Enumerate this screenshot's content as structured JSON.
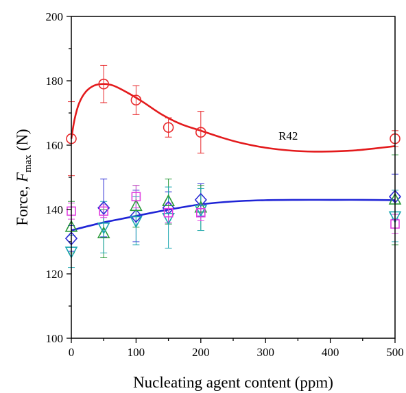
{
  "chart_data": {
    "type": "scatter",
    "title": "",
    "xlabel": "Nucleating agent content (ppm)",
    "ylabel": {
      "prefix": "Force, ",
      "symbol": "F",
      "subscript": "max",
      "suffix": " (N)"
    },
    "xlim": [
      0,
      500
    ],
    "ylim": [
      100,
      200
    ],
    "xticks": [
      0,
      100,
      200,
      300,
      400,
      500
    ],
    "yticks": [
      100,
      120,
      140,
      160,
      180,
      200
    ],
    "grid": false,
    "legend": "none",
    "annotations": [
      {
        "text": "R42",
        "x": 320,
        "y": 163
      }
    ],
    "series": [
      {
        "marker": "circle",
        "color": "#e8282b",
        "points": [
          {
            "x": 0,
            "y": 162,
            "err": 11.5
          },
          {
            "x": 50,
            "y": 179,
            "err": 5.8
          },
          {
            "x": 100,
            "y": 174,
            "err": 4.5
          },
          {
            "x": 150,
            "y": 165.5,
            "err": 3
          },
          {
            "x": 200,
            "y": 164,
            "err": 6.5
          },
          {
            "x": 500,
            "y": 162,
            "err": 2.5
          }
        ]
      },
      {
        "marker": "diamond",
        "color": "#2b2bd6",
        "points": [
          {
            "x": 0,
            "y": 131,
            "err": 4
          },
          {
            "x": 50,
            "y": 140.5,
            "err": 9
          },
          {
            "x": 100,
            "y": 138,
            "err": 8
          },
          {
            "x": 150,
            "y": 140.5,
            "err": 5
          },
          {
            "x": 200,
            "y": 143,
            "err": 5
          },
          {
            "x": 500,
            "y": 144,
            "err": 7
          }
        ]
      },
      {
        "marker": "triangle-up",
        "color": "#2a9a3a",
        "points": [
          {
            "x": 0,
            "y": 134.5,
            "err": 8
          },
          {
            "x": 50,
            "y": 132.5,
            "err": 7.5
          },
          {
            "x": 100,
            "y": 141,
            "err": 6.5
          },
          {
            "x": 150,
            "y": 142.5,
            "err": 7
          },
          {
            "x": 200,
            "y": 140.5,
            "err": 7
          },
          {
            "x": 500,
            "y": 143,
            "err": 14
          }
        ]
      },
      {
        "marker": "triangle-down",
        "color": "#1aa6b0",
        "points": [
          {
            "x": 0,
            "y": 127,
            "err": 5
          },
          {
            "x": 50,
            "y": 134.5,
            "err": 8
          },
          {
            "x": 100,
            "y": 136.5,
            "err": 7.5
          },
          {
            "x": 150,
            "y": 137.5,
            "err": 9.5
          },
          {
            "x": 200,
            "y": 140,
            "err": 6.5
          },
          {
            "x": 500,
            "y": 138,
            "err": 8
          }
        ]
      },
      {
        "marker": "square",
        "color": "#e040e0",
        "points": [
          {
            "x": 0,
            "y": 139.5,
            "err": 2.5
          },
          {
            "x": 50,
            "y": 139.5,
            "err": 2
          },
          {
            "x": 100,
            "y": 144,
            "err": 3.5
          },
          {
            "x": 150,
            "y": 139,
            "err": 3
          },
          {
            "x": 200,
            "y": 139,
            "err": 2.5
          },
          {
            "x": 500,
            "y": 135.5,
            "err": 3
          }
        ]
      }
    ],
    "fits": [
      {
        "color": "#e31a1c",
        "points": [
          [
            0,
            162
          ],
          [
            5,
            168
          ],
          [
            12,
            173
          ],
          [
            22,
            176.5
          ],
          [
            35,
            178.5
          ],
          [
            50,
            179
          ],
          [
            65,
            178.5
          ],
          [
            85,
            176.5
          ],
          [
            110,
            173.5
          ],
          [
            140,
            169.5
          ],
          [
            170,
            166.5
          ],
          [
            200,
            164.5
          ],
          [
            230,
            162.5
          ],
          [
            260,
            160.8
          ],
          [
            300,
            159.2
          ],
          [
            340,
            158.3
          ],
          [
            375,
            158
          ],
          [
            410,
            158.1
          ],
          [
            440,
            158.4
          ],
          [
            470,
            159
          ],
          [
            500,
            159.7
          ]
        ]
      },
      {
        "color": "#1f24d6",
        "points": [
          [
            0,
            133.5
          ],
          [
            25,
            134.8
          ],
          [
            50,
            136
          ],
          [
            75,
            137
          ],
          [
            100,
            138
          ],
          [
            130,
            139.2
          ],
          [
            160,
            140.3
          ],
          [
            200,
            141.6
          ],
          [
            250,
            142.5
          ],
          [
            300,
            142.9
          ],
          [
            350,
            143
          ],
          [
            400,
            143
          ],
          [
            450,
            143
          ],
          [
            500,
            142.9
          ]
        ]
      }
    ]
  }
}
